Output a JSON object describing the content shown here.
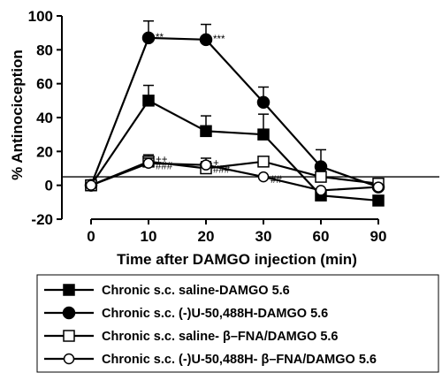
{
  "chart_data": {
    "type": "line",
    "xlabel": "Time after DAMGO injection (min)",
    "ylabel": "% Antinociception",
    "ylim": [
      -20,
      100
    ],
    "yticks": [
      -20,
      0,
      20,
      40,
      60,
      80,
      100
    ],
    "categories": [
      "0",
      "10",
      "20",
      "30",
      "60",
      "90"
    ],
    "reference_line": 5,
    "grid": false,
    "legend_position": "below",
    "series": [
      {
        "name": "Chronic s.c. saline-DAMGO 5.6",
        "marker": "filled-square",
        "values": [
          0,
          50,
          32,
          30,
          -6,
          -9
        ],
        "errors": [
          0,
          9,
          9,
          12,
          0,
          0
        ]
      },
      {
        "name": "Chronic s.c. (-)U-50,488H-DAMGO 5.6",
        "marker": "filled-circle",
        "values": [
          0,
          87,
          86,
          49,
          11,
          -1
        ],
        "errors": [
          0,
          10,
          9,
          9,
          10,
          0
        ]
      },
      {
        "name": "Chronic s.c. saline- β–FNA/DAMGO 5.6",
        "marker": "open-square",
        "values": [
          0,
          14,
          10,
          14,
          5,
          1
        ],
        "errors": [
          0,
          4,
          4,
          0,
          2,
          0
        ]
      },
      {
        "name": "Chronic s.c. (-)U-50,488H- β–FNA/DAMGO 5.6",
        "marker": "open-circle",
        "values": [
          0,
          13,
          12,
          5,
          -3,
          -1
        ],
        "errors": [
          0,
          3,
          4,
          0,
          0,
          0
        ]
      }
    ],
    "annotations": [
      {
        "text": "**",
        "x": "10",
        "y": 87
      },
      {
        "text": "***",
        "x": "20",
        "y": 86
      },
      {
        "text": "++",
        "x": "10",
        "y": 15
      },
      {
        "text": "###",
        "x": "10",
        "y": 11
      },
      {
        "text": "+",
        "x": "20",
        "y": 13
      },
      {
        "text": "###",
        "x": "20",
        "y": 9
      },
      {
        "text": "##",
        "x": "30",
        "y": 3
      }
    ]
  }
}
